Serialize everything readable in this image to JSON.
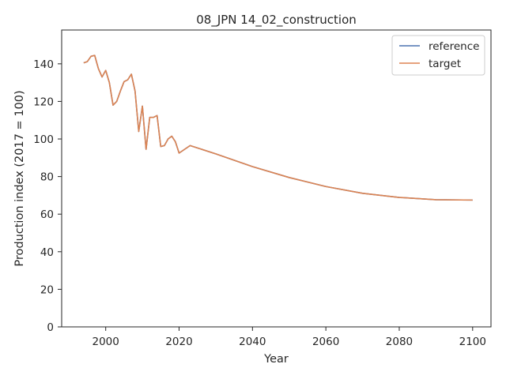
{
  "chart_data": {
    "type": "line",
    "title": "08_JPN 14_02_construction",
    "xlabel": "Year",
    "ylabel": "Production index (2017 = 100)",
    "xlim": [
      1988,
      2105
    ],
    "ylim": [
      0,
      158
    ],
    "xticks": [
      2000,
      2020,
      2040,
      2060,
      2080,
      2100
    ],
    "yticks": [
      0,
      20,
      40,
      60,
      80,
      100,
      120,
      140
    ],
    "grid": false,
    "legend_position": "top-right",
    "series": [
      {
        "name": "reference",
        "color": "#4c72b0",
        "points": [
          [
            1994,
            140.5
          ],
          [
            1995,
            141.2
          ],
          [
            1996,
            144
          ],
          [
            1997,
            144.5
          ],
          [
            1998,
            137.5
          ],
          [
            1999,
            133
          ],
          [
            2000,
            136.5
          ],
          [
            2001,
            130
          ],
          [
            2002,
            118
          ],
          [
            2003,
            120
          ],
          [
            2004,
            125.5
          ],
          [
            2005,
            130.5
          ],
          [
            2006,
            131.5
          ],
          [
            2007,
            134.5
          ],
          [
            2008,
            125.5
          ],
          [
            2009,
            104
          ],
          [
            2010,
            117.5
          ],
          [
            2011,
            94.5
          ],
          [
            2012,
            111.5
          ],
          [
            2013,
            111.5
          ],
          [
            2014,
            112.5
          ],
          [
            2015,
            96
          ],
          [
            2016,
            96.5
          ],
          [
            2017,
            100
          ],
          [
            2018,
            101.5
          ],
          [
            2019,
            98.5
          ],
          [
            2020,
            92.5
          ],
          [
            2023,
            96.5
          ],
          [
            2030,
            92.1
          ],
          [
            2040,
            85.3
          ],
          [
            2050,
            79.5
          ],
          [
            2060,
            74.7
          ],
          [
            2070,
            71.1
          ],
          [
            2080,
            68.9
          ],
          [
            2090,
            67.7
          ],
          [
            2100,
            67.5
          ]
        ]
      },
      {
        "name": "target",
        "color": "#dd8452",
        "points": [
          [
            1994,
            140.5
          ],
          [
            1995,
            141.2
          ],
          [
            1996,
            144
          ],
          [
            1997,
            144.5
          ],
          [
            1998,
            137.5
          ],
          [
            1999,
            133
          ],
          [
            2000,
            136.5
          ],
          [
            2001,
            130
          ],
          [
            2002,
            118
          ],
          [
            2003,
            120
          ],
          [
            2004,
            125.5
          ],
          [
            2005,
            130.5
          ],
          [
            2006,
            131.5
          ],
          [
            2007,
            134.5
          ],
          [
            2008,
            125.5
          ],
          [
            2009,
            104
          ],
          [
            2010,
            117.5
          ],
          [
            2011,
            94.5
          ],
          [
            2012,
            111.5
          ],
          [
            2013,
            111.5
          ],
          [
            2014,
            112.5
          ],
          [
            2015,
            96
          ],
          [
            2016,
            96.5
          ],
          [
            2017,
            100
          ],
          [
            2018,
            101.5
          ],
          [
            2019,
            98.5
          ],
          [
            2020,
            92.5
          ],
          [
            2023,
            96.5
          ],
          [
            2030,
            92.1
          ],
          [
            2040,
            85.3
          ],
          [
            2050,
            79.5
          ],
          [
            2060,
            74.7
          ],
          [
            2070,
            71.1
          ],
          [
            2080,
            68.9
          ],
          [
            2090,
            67.7
          ],
          [
            2100,
            67.5
          ]
        ]
      }
    ]
  }
}
